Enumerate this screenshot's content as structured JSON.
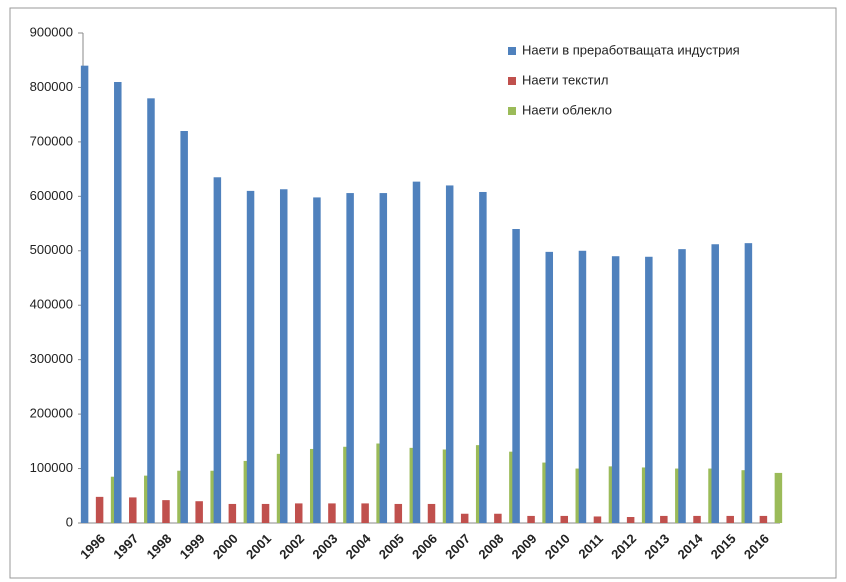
{
  "chart_data": {
    "type": "bar",
    "categories": [
      "1996",
      "1997",
      "1998",
      "1999",
      "2000",
      "2001",
      "2002",
      "2003",
      "2004",
      "2005",
      "2006",
      "2007",
      "2008",
      "2009",
      "2010",
      "2011",
      "2012",
      "2013",
      "2014",
      "2015",
      "2016"
    ],
    "series": [
      {
        "name": "Наети в преработващата индустрия",
        "color": "#4f81bd",
        "values": [
          840000,
          810000,
          780000,
          720000,
          635000,
          610000,
          613000,
          598000,
          606000,
          606000,
          627000,
          620000,
          608000,
          540000,
          498000,
          500000,
          490000,
          489000,
          503000,
          512000,
          514000
        ]
      },
      {
        "name": "Наети  текстил",
        "color": "#c0504d",
        "values": [
          48000,
          47000,
          42000,
          40000,
          35000,
          35000,
          36000,
          36000,
          36000,
          35000,
          35000,
          17000,
          17000,
          13000,
          13000,
          12000,
          11000,
          13000,
          13000,
          13000,
          13000
        ]
      },
      {
        "name": "Наети облекло",
        "color": "#9bbb59",
        "values": [
          85000,
          87000,
          96000,
          96000,
          114000,
          127000,
          136000,
          140000,
          146000,
          138000,
          135000,
          143000,
          131000,
          111000,
          100000,
          104000,
          102000,
          100000,
          100000,
          97000,
          92000
        ]
      }
    ],
    "ylim": [
      0,
      900000
    ],
    "yticks": [
      0,
      100000,
      200000,
      300000,
      400000,
      500000,
      600000,
      700000,
      800000,
      900000
    ],
    "grid": false,
    "legend": "top-right"
  }
}
